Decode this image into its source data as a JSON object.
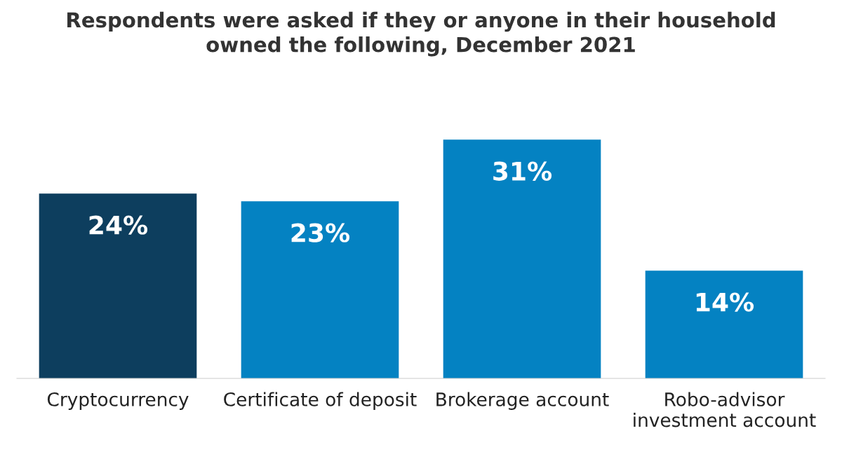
{
  "chart_data": {
    "type": "bar",
    "title": "Respondents were asked if they or anyone in their household\nowned the following, December 2021",
    "categories": [
      "Cryptocurrency",
      "Certificate of deposit",
      "Brokerage account",
      "Robo-advisor\ninvestment account"
    ],
    "values": [
      24,
      23,
      31,
      14
    ],
    "colors": [
      "#0d3e5e",
      "#0482c2",
      "#0482c2",
      "#0482c2"
    ],
    "value_labels": [
      "24%",
      "23%",
      "31%",
      "14%"
    ],
    "grid": false,
    "legend": false
  }
}
